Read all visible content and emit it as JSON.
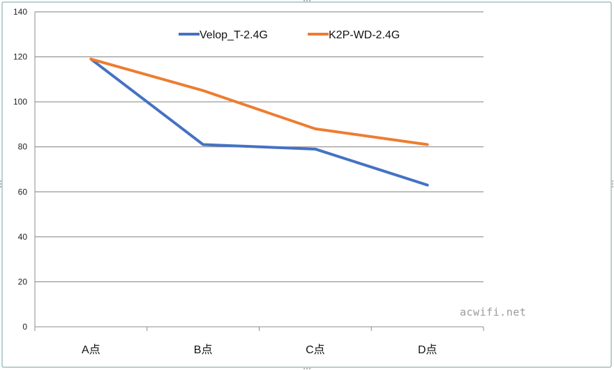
{
  "chart_data": {
    "type": "line",
    "title": "",
    "xlabel": "",
    "ylabel": "",
    "categories": [
      "A点",
      "B点",
      "C点",
      "D点"
    ],
    "y_ticks": [
      "0",
      "20",
      "40",
      "60",
      "80",
      "100",
      "120",
      "140"
    ],
    "ylim": [
      0,
      140
    ],
    "grid": true,
    "legend_position": "top",
    "series": [
      {
        "name": "Velop_T-2.4G",
        "color": "#4472C4",
        "values": [
          119,
          81,
          79,
          63
        ]
      },
      {
        "name": "K2P-WD-2.4G",
        "color": "#ED7D31",
        "values": [
          119,
          105,
          88,
          81
        ]
      }
    ]
  },
  "watermark": "acwifi.net",
  "colors": {
    "frame": "#6fa0a0",
    "gridline": "#7f7f7f",
    "axis": "#8c8c8c"
  }
}
